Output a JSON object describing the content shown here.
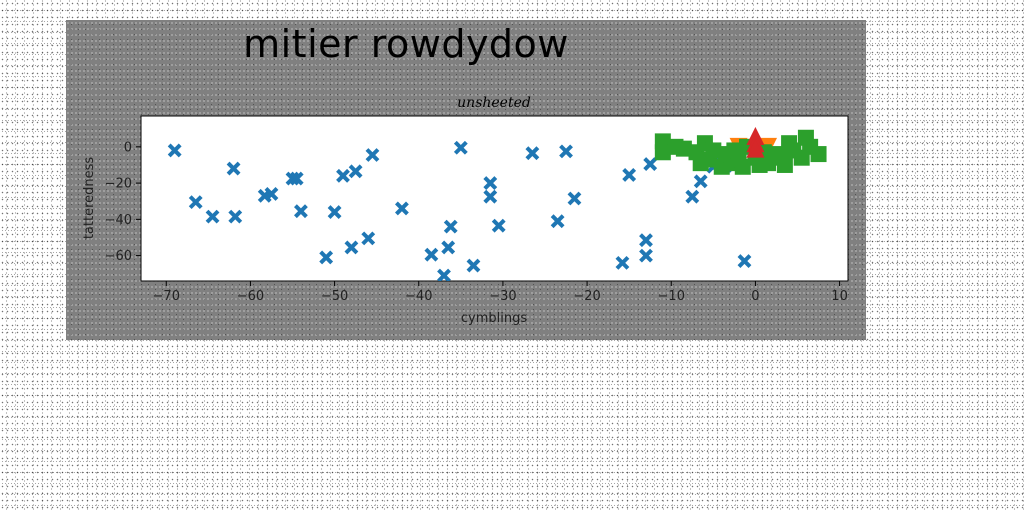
{
  "figure": {
    "suptitle": "mitier rowdydow"
  },
  "chart_data": {
    "type": "scatter",
    "title": "unsheeted",
    "xlabel": "cymblings",
    "ylabel": "tatteredness",
    "xlim": [
      -73,
      11
    ],
    "ylim": [
      -74,
      17
    ],
    "xticks": [
      -70,
      -60,
      -50,
      -40,
      -30,
      -20,
      -10,
      0,
      10
    ],
    "yticks": [
      0,
      -20,
      -40,
      -60
    ],
    "grid": false,
    "series": [
      {
        "marker": "x",
        "color": "#1f77b4",
        "points": [
          [
            -69,
            -2
          ],
          [
            -66.5,
            -30.5
          ],
          [
            -64.5,
            -38.5
          ],
          [
            -62,
            -12
          ],
          [
            -61.8,
            -38.5
          ],
          [
            -58.3,
            -27
          ],
          [
            -57.5,
            -26
          ],
          [
            -55,
            -17.5
          ],
          [
            -54.5,
            -17.5
          ],
          [
            -54,
            -35.5
          ],
          [
            -51,
            -61
          ],
          [
            -50,
            -36
          ],
          [
            -49,
            -16
          ],
          [
            -48,
            -55.5
          ],
          [
            -47.5,
            -13.5
          ],
          [
            -46,
            -50.5
          ],
          [
            -45.5,
            -4.5
          ],
          [
            -42,
            -34
          ],
          [
            -38.5,
            -59.5
          ],
          [
            -37,
            -71
          ],
          [
            -36.5,
            -55.5
          ],
          [
            -36.2,
            -44
          ],
          [
            -35,
            -0.5
          ],
          [
            -33.5,
            -65.5
          ],
          [
            -31.5,
            -20
          ],
          [
            -31.5,
            -27.5
          ],
          [
            -30.5,
            -43.5
          ],
          [
            -26.5,
            -3.5
          ],
          [
            -23.5,
            -41
          ],
          [
            -22.5,
            -2.5
          ],
          [
            -21.5,
            -28.5
          ],
          [
            -15.8,
            -64
          ],
          [
            -15,
            -15.5
          ],
          [
            -13,
            -51.5
          ],
          [
            -13,
            -60
          ],
          [
            -12.5,
            -9.5
          ],
          [
            -7.5,
            -27.5
          ],
          [
            -6.5,
            -19
          ],
          [
            -5,
            -11
          ],
          [
            -4,
            -10
          ],
          [
            -3.5,
            -10.5
          ],
          [
            -1.3,
            -63
          ]
        ]
      },
      {
        "marker": "v",
        "color": "#ff7f0e",
        "points": [
          [
            -2,
            0
          ],
          [
            1.5,
            0
          ]
        ]
      },
      {
        "marker": "s",
        "color": "#2ca02c",
        "points": [
          [
            -11,
            3
          ],
          [
            -11,
            -3
          ],
          [
            -9.5,
            0
          ],
          [
            -8.5,
            -1
          ],
          [
            -7,
            -3
          ],
          [
            -6.5,
            -9
          ],
          [
            -6,
            2
          ],
          [
            -5.5,
            -7
          ],
          [
            -5,
            -2
          ],
          [
            -4,
            -11
          ],
          [
            -3.5,
            -4
          ],
          [
            -2.8,
            -9
          ],
          [
            -2.5,
            -2
          ],
          [
            -2,
            -7
          ],
          [
            -1.5,
            -11
          ],
          [
            -1,
            0
          ],
          [
            0,
            -6
          ],
          [
            0.5,
            -10
          ],
          [
            1,
            -3
          ],
          [
            1.5,
            -9
          ],
          [
            2.5,
            -4
          ],
          [
            3,
            -6
          ],
          [
            3.5,
            -10
          ],
          [
            4,
            2
          ],
          [
            4.5,
            -2
          ],
          [
            5.5,
            -6
          ],
          [
            6,
            5
          ],
          [
            6.5,
            0
          ],
          [
            7.5,
            -4
          ]
        ]
      },
      {
        "marker": "^",
        "color": "#d62728",
        "points": [
          [
            0,
            6
          ],
          [
            0,
            2
          ],
          [
            0,
            -1
          ]
        ]
      }
    ]
  }
}
